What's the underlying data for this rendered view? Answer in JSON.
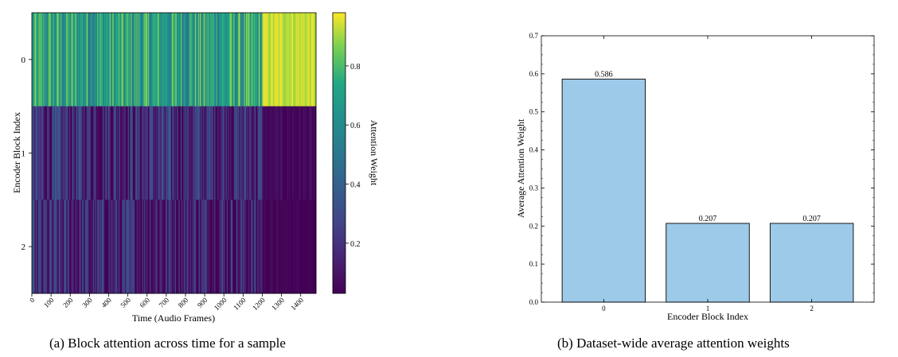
{
  "colors": {
    "viridis_low": "#440154",
    "viridis_high": "#fde725",
    "bar_fill": "#9ecae9",
    "bar_edge": "#000000"
  },
  "captions": {
    "a": "(a) Block attention across time for a sample",
    "b": "(b) Dataset-wide average attention weights"
  },
  "chart_data": [
    {
      "type": "heatmap",
      "title": "",
      "xlabel": "Time (Audio Frames)",
      "ylabel": "Encoder Block Index",
      "rows": [
        "0",
        "1",
        "2"
      ],
      "xlim": [
        0,
        1480
      ],
      "x_ticks": [
        0,
        100,
        200,
        300,
        400,
        500,
        600,
        700,
        800,
        900,
        1000,
        1100,
        1200,
        1300,
        1400
      ],
      "x_tick_labels": [
        "0",
        "100",
        "200",
        "300",
        "400",
        "500",
        "600",
        "700",
        "800",
        "900",
        "1000",
        "1100",
        "1200",
        "1300",
        "1400"
      ],
      "colorbar": {
        "label": "Attention Weight",
        "range": [
          0.03,
          0.98
        ],
        "ticks": [
          0.2,
          0.4,
          0.6,
          0.8
        ],
        "tick_labels": [
          "0.2",
          "0.4",
          "0.6",
          "0.8"
        ]
      },
      "segment_means": [
        {
          "from": 0,
          "to": 1200,
          "values": [
            0.68,
            0.18,
            0.14
          ]
        },
        {
          "from": 1200,
          "to": 1480,
          "values": [
            0.93,
            0.05,
            0.03
          ]
        }
      ]
    },
    {
      "type": "bar",
      "title": "",
      "categories": [
        "0",
        "1",
        "2"
      ],
      "values": [
        0.586,
        0.207,
        0.207
      ],
      "data_labels": [
        "0.586",
        "0.207",
        "0.207"
      ],
      "xlabel": "Encoder Block Index",
      "ylabel": "Average Attention Weight",
      "ylim": [
        0,
        0.7
      ],
      "y_ticks": [
        0.0,
        0.1,
        0.2,
        0.3,
        0.4,
        0.5,
        0.6,
        0.7
      ],
      "y_tick_labels": [
        "0.0",
        "0.1",
        "0.2",
        "0.3",
        "0.4",
        "0.5",
        "0.6",
        "0.7"
      ]
    }
  ]
}
